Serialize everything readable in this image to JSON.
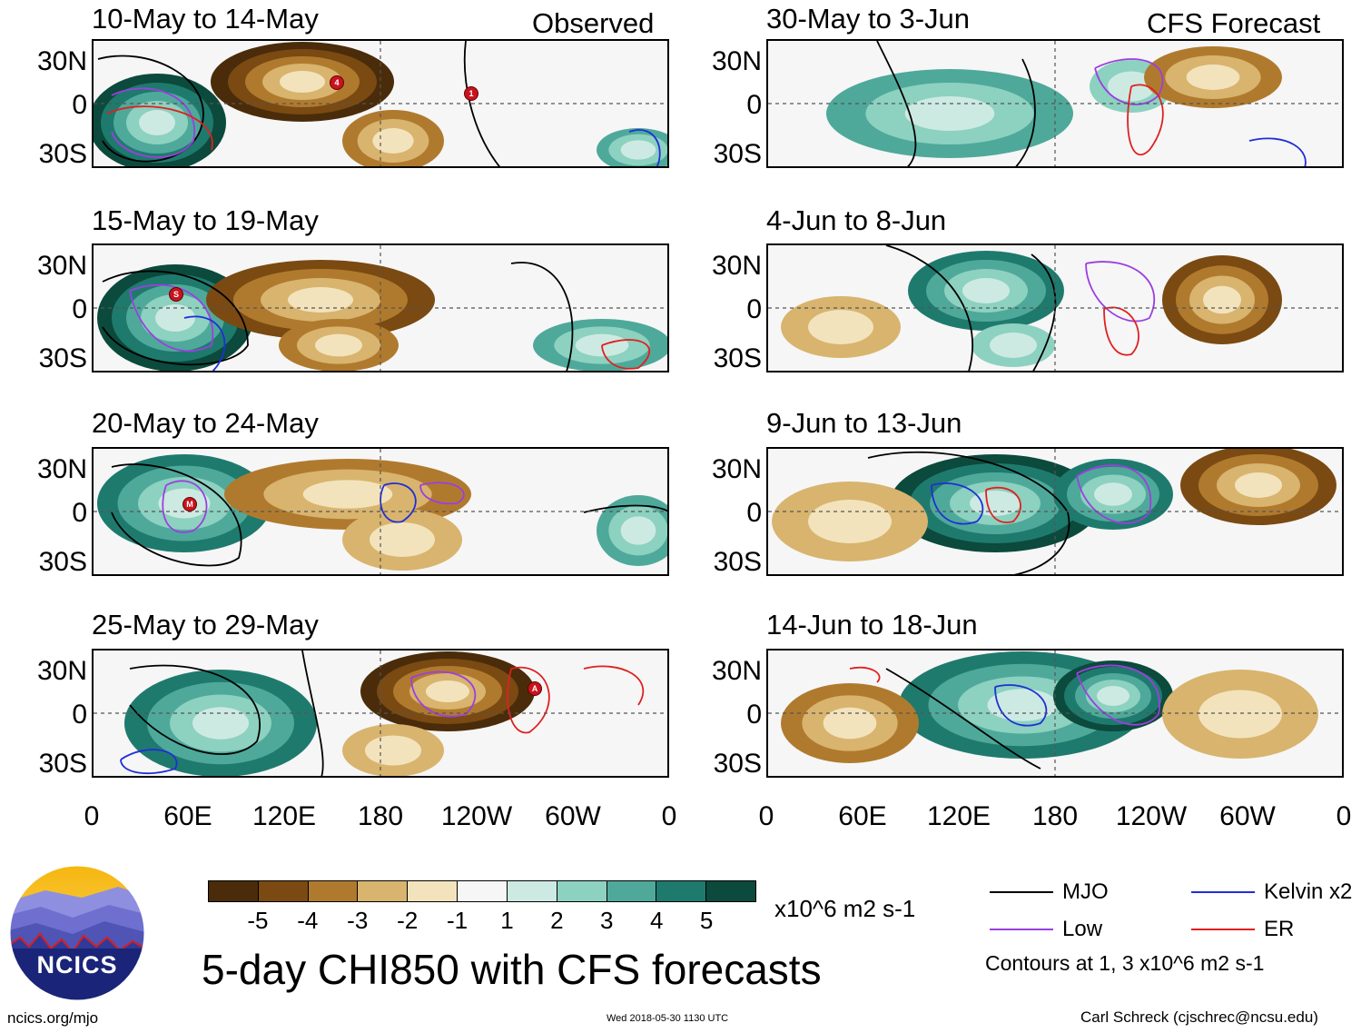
{
  "observed_label": "Observed",
  "forecast_label": "CFS Forecast",
  "lat_labels": [
    "30N",
    "0",
    "30S"
  ],
  "lon_labels": [
    "0",
    "60E",
    "120E",
    "180",
    "120W",
    "60W",
    "0"
  ],
  "panels": [
    {
      "title": "10-May to 14-May",
      "column": "observed",
      "storms": [
        "4",
        "1"
      ]
    },
    {
      "title": "15-May to 19-May",
      "column": "observed",
      "storms": [
        "S"
      ]
    },
    {
      "title": "20-May to 24-May",
      "column": "observed",
      "storms": [
        "M"
      ]
    },
    {
      "title": "25-May to 29-May",
      "column": "observed",
      "storms": [
        "A"
      ]
    },
    {
      "title": "30-May to 3-Jun",
      "column": "forecast",
      "storms": []
    },
    {
      "title": "4-Jun to 8-Jun",
      "column": "forecast",
      "storms": []
    },
    {
      "title": "9-Jun to 13-Jun",
      "column": "forecast",
      "storms": []
    },
    {
      "title": "14-Jun to 18-Jun",
      "column": "forecast",
      "storms": []
    }
  ],
  "colorbar": {
    "colors": [
      "#4a2c0a",
      "#7a4a12",
      "#b07a2e",
      "#d8b46e",
      "#f3e3bc",
      "#f6f6f6",
      "#cdeae2",
      "#8dd1c0",
      "#4fa99a",
      "#1f7a6e",
      "#0b4a3c"
    ],
    "ticks": [
      "-5",
      "-4",
      "-3",
      "-2",
      "-1",
      "1",
      "2",
      "3",
      "4",
      "5"
    ],
    "units": "x10^6 m2 s-1"
  },
  "legend": {
    "items": [
      {
        "label": "MJO",
        "color": "#000000"
      },
      {
        "label": "Kelvin x2",
        "color": "#1f2fd6"
      },
      {
        "label": "Low",
        "color": "#9b3fe0"
      },
      {
        "label": "ER",
        "color": "#e02020"
      }
    ],
    "contours_note": "Contours at 1, 3 x10^6 m2 s-1"
  },
  "main_title": "5-day CHI850 with CFS forecasts",
  "logo_text": "NCICS",
  "footer": {
    "url": "ncics.org/mjo",
    "timestamp": "Wed 2018-05-30 1130 UTC",
    "author": "Carl Schreck (cjschrec@ncsu.edu)"
  }
}
